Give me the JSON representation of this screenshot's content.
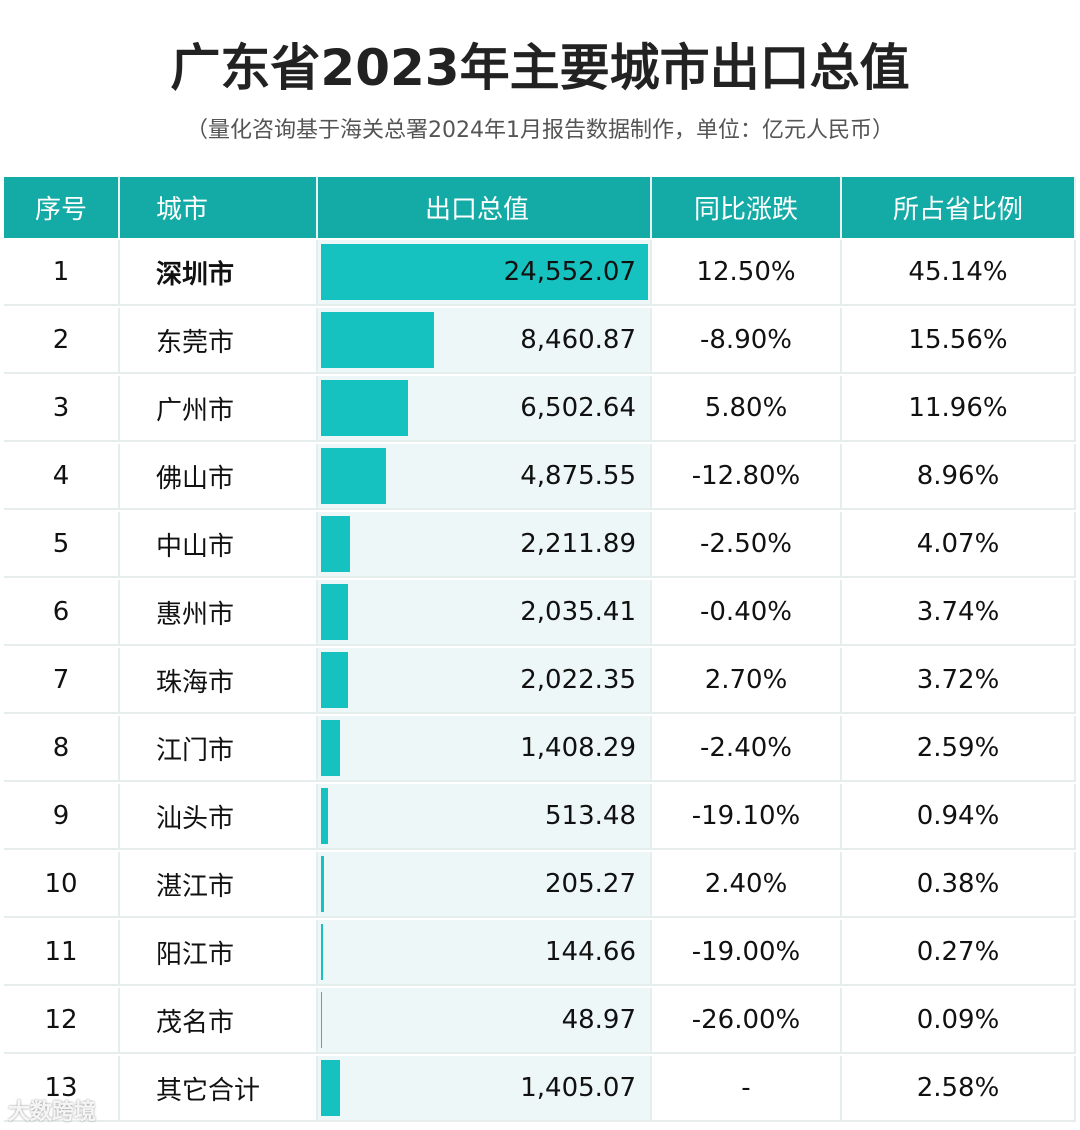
{
  "title": "广东省2023年主要城市出口总值",
  "subtitle": "（量化咨询基于海关总署2024年1月报告数据制作，单位：亿元人民币）",
  "watermark": "大数跨境",
  "colors": {
    "header": "#14aba6",
    "bar": "#16c2bf",
    "value_cell_bg": "#eef7f7"
  },
  "chart_data": {
    "type": "table",
    "columns": [
      "序号",
      "城市",
      "出口总值",
      "同比涨跌",
      "所占省比例"
    ],
    "rows": [
      [
        "1",
        "深圳市",
        "24,552.07",
        "12.50%",
        "45.14%"
      ],
      [
        "2",
        "东莞市",
        "8,460.87",
        "-8.90%",
        "15.56%"
      ],
      [
        "3",
        "广州市",
        "6,502.64",
        "5.80%",
        "11.96%"
      ],
      [
        "4",
        "佛山市",
        "4,875.55",
        "-12.80%",
        "8.96%"
      ],
      [
        "5",
        "中山市",
        "2,211.89",
        "-2.50%",
        "4.07%"
      ],
      [
        "6",
        "惠州市",
        "2,035.41",
        "-0.40%",
        "3.74%"
      ],
      [
        "7",
        "珠海市",
        "2,022.35",
        "2.70%",
        "3.72%"
      ],
      [
        "8",
        "江门市",
        "1,408.29",
        "-2.40%",
        "2.59%"
      ],
      [
        "9",
        "汕头市",
        "513.48",
        "-19.10%",
        "0.94%"
      ],
      [
        "10",
        "湛江市",
        "205.27",
        "2.40%",
        "0.38%"
      ],
      [
        "11",
        "阳江市",
        "144.66",
        "-19.00%",
        "0.27%"
      ],
      [
        "12",
        "茂名市",
        "48.97",
        "-26.00%",
        "0.09%"
      ],
      [
        "13",
        "其它合计",
        "1,405.07",
        "-",
        "2.58%"
      ]
    ],
    "bar_column": "出口总值"
  }
}
